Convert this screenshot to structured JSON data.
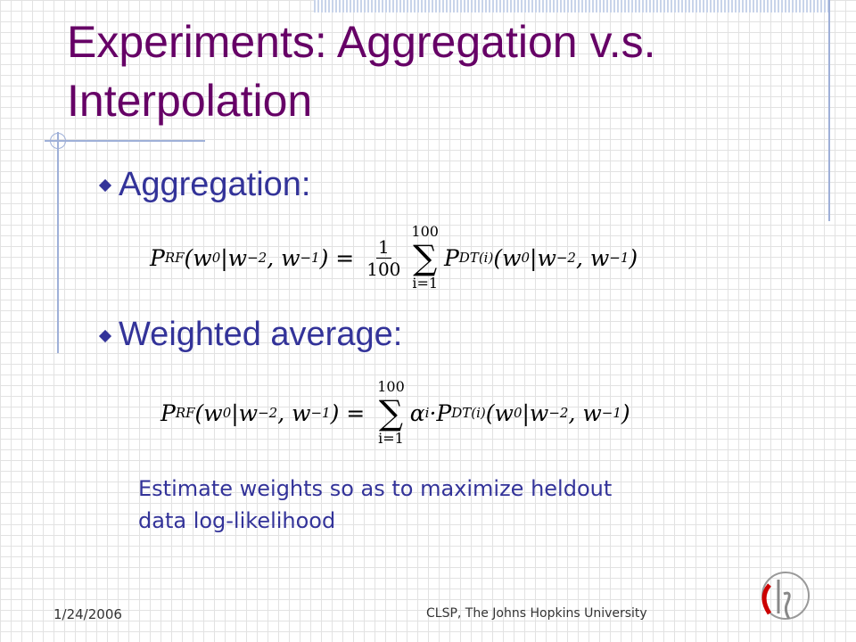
{
  "slide": {
    "title": "Experiments: Aggregation v.s. Interpolation",
    "bullets": [
      {
        "text": "Aggregation:",
        "formula": [
          {
            "text": "P"
          },
          {
            "sub": "RF"
          },
          {
            "text": "(w"
          },
          {
            "sub": "0"
          },
          {
            "text": "|w"
          },
          {
            "sub": "−2"
          },
          {
            "text": ", w"
          },
          {
            "sub": "−1"
          },
          {
            "text": ") = "
          },
          {
            "frac": [
              "1",
              "100"
            ]
          },
          {
            "sum": {
              "symbol": "∑",
              "to": "100",
              "from": "i=1"
            }
          },
          {
            "text": "P"
          },
          {
            "sub": "DT(i)"
          },
          {
            "text": "(w"
          },
          {
            "sub": "0"
          },
          {
            "text": "|w"
          },
          {
            "sub": "−2"
          },
          {
            "text": ", w"
          },
          {
            "sub": "−1"
          },
          {
            "text": ")"
          }
        ]
      },
      {
        "text": "Weighted average:",
        "formula": [
          {
            "text": "P"
          },
          {
            "sub": "RF"
          },
          {
            "text": "(w"
          },
          {
            "sub": "0"
          },
          {
            "text": "|w"
          },
          {
            "sub": "−2"
          },
          {
            "text": ", w"
          },
          {
            "sub": "−1"
          },
          {
            "text": ") = "
          },
          {
            "sum": {
              "symbol": "∑",
              "to": "100",
              "from": "i=1"
            }
          },
          {
            "text": "α"
          },
          {
            "sub": "i"
          },
          {
            "text": "·P"
          },
          {
            "sub": "DT(i)"
          },
          {
            "text": "(w"
          },
          {
            "sub": "0"
          },
          {
            "text": "|w"
          },
          {
            "sub": "−2"
          },
          {
            "text": ", w"
          },
          {
            "sub": "−1"
          },
          {
            "text": ")"
          }
        ]
      }
    ],
    "note": [
      "Estimate weights so as to maximize heldout",
      "data log-likelihood"
    ],
    "footer": {
      "date": "1/24/2006",
      "org": "CLSP, The Johns Hopkins University"
    }
  }
}
